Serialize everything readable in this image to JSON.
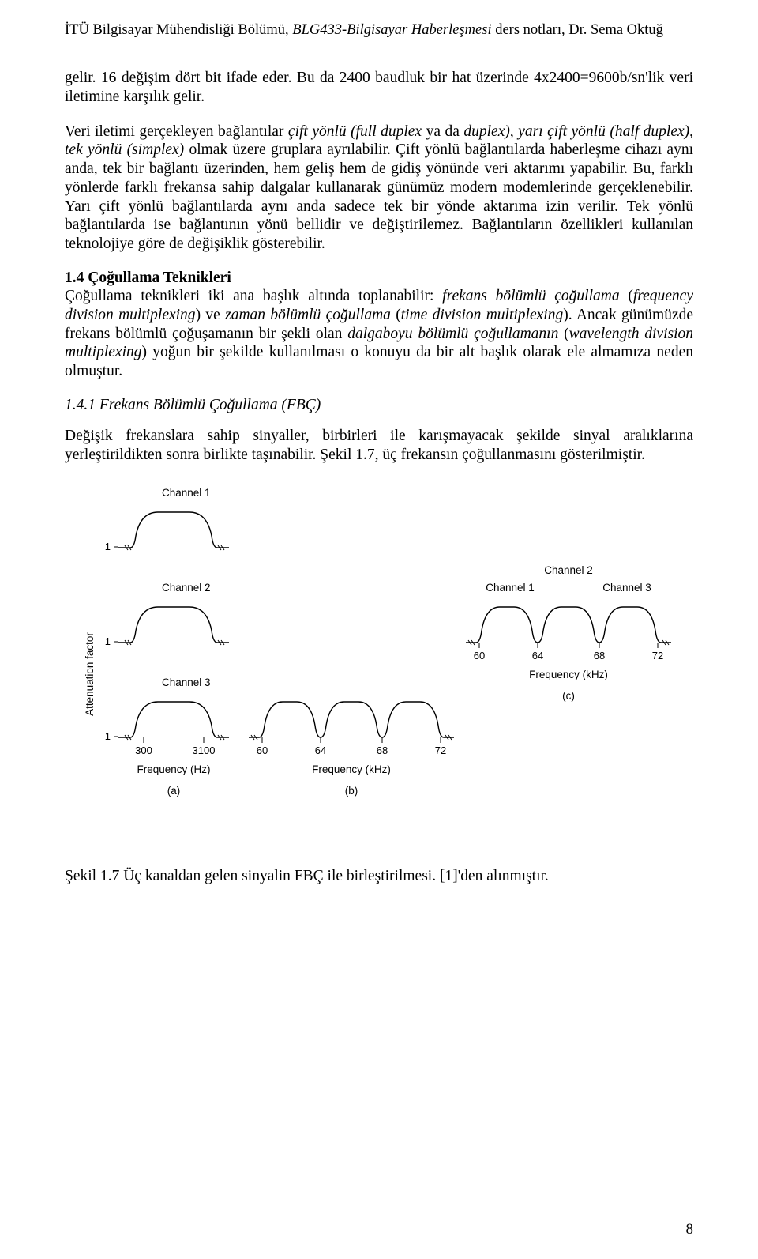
{
  "header": {
    "inst": "İTÜ Bilgisayar Mühendisliği Bölümü,",
    "course_italic": "BLG433-Bilgisayar Haberleşmesi",
    "rest": "ders notları, Dr. Sema Oktuğ"
  },
  "para1": "gelir. 16 değişim dört bit ifade eder. Bu da 2400 baudluk bir hat üzerinde 4x2400=9600b/sn'lik veri iletimine karşılık gelir.",
  "para2_parts": [
    {
      "t": "Veri iletimi gerçekleyen bağlantılar ",
      "i": false
    },
    {
      "t": "çift yönlü (full duplex",
      "i": true
    },
    {
      "t": " ya da ",
      "i": false
    },
    {
      "t": "duplex)",
      "i": true
    },
    {
      "t": ", ",
      "i": false
    },
    {
      "t": "yarı çift yönlü (half duplex)",
      "i": true
    },
    {
      "t": ", ",
      "i": false
    },
    {
      "t": "tek yönlü (simplex)",
      "i": true
    },
    {
      "t": " olmak üzere gruplara ayrılabilir. Çift yönlü bağlantılarda haberleşme cihazı aynı anda, tek bir bağlantı üzerinden, hem geliş hem de gidiş yönünde veri aktarımı yapabilir. Bu, farklı yönlerde farklı frekansa sahip dalgalar kullanarak günümüz modern modemlerinde gerçeklenebilir. Yarı çift yönlü bağlantılarda aynı anda sadece tek bir yönde aktarıma izin verilir. Tek yönlü bağlantılarda ise bağlantının yönü bellidir ve değiştirilemez. Bağlantıların özellikleri kullanılan teknolojiye göre de değişiklik gösterebilir.",
      "i": false
    }
  ],
  "sect14_head": "1.4 Çoğullama Teknikleri",
  "para3_parts": [
    {
      "t": "Çoğullama teknikleri iki ana başlık altında toplanabilir: ",
      "i": false
    },
    {
      "t": "frekans bölümlü çoğullama",
      "i": true
    },
    {
      "t": " (",
      "i": false
    },
    {
      "t": "frequency division multiplexing",
      "i": true
    },
    {
      "t": ") ve ",
      "i": false
    },
    {
      "t": "zaman bölümlü çoğullama",
      "i": true
    },
    {
      "t": " (",
      "i": false
    },
    {
      "t": "time division multiplexing",
      "i": true
    },
    {
      "t": "). Ancak günümüzde frekans bölümlü çoğuşamanın bir şekli olan ",
      "i": false
    },
    {
      "t": "dalgaboyu bölümlü çoğullamanın",
      "i": true
    },
    {
      "t": " (",
      "i": false
    },
    {
      "t": "wavelength division multiplexing",
      "i": true
    },
    {
      "t": ") yoğun bir şekilde kullanılması o konuyu da bir alt başlık olarak ele almamıza neden olmuştur.",
      "i": false
    }
  ],
  "sub141": "1.4.1 Frekans Bölümlü Çoğullama (FBÇ)",
  "para4": "Değişik frekanslara sahip sinyaller, birbirleri ile karışmayacak şekilde sinyal aralıklarına yerleştirildikten sonra birlikte taşınabilir. Şekil 1.7, üç frekansın çoğullanmasını gösterilmiştir.",
  "caption": "Şekil 1.7 Üç kanaldan gelen sinyalin FBÇ ile birleştirilmesi. [1]'den alınmıştır.",
  "pagenum": "8",
  "figure": {
    "stroke": "#000000",
    "stroke_width": 1.2,
    "font": "Arial",
    "a": {
      "channels": [
        "Channel 1",
        "Channel 2",
        "Channel 3"
      ],
      "ytick_label": "1",
      "xticks": [
        "300",
        "3100"
      ],
      "xlabel": "Frequency (Hz)",
      "sublabel": "(a)",
      "yaxis_label": "Attenuation factor",
      "yaxis_label_rotation": -90
    },
    "b": {
      "xticks": [
        "60",
        "64",
        "68",
        "72"
      ],
      "xlabel": "Frequency (kHz)",
      "sublabel": "(b)"
    },
    "c": {
      "channels_top": "Channel 2",
      "channels_side": [
        "Channel 1",
        "Channel 3"
      ],
      "xticks": [
        "60",
        "64",
        "68",
        "72"
      ],
      "xlabel": "Frequency (kHz)",
      "sublabel": "(c)"
    },
    "khz_right_a": [
      "60",
      "64",
      "68",
      "72"
    ],
    "colors": {
      "line": "#000000",
      "bg": "#ffffff"
    }
  }
}
